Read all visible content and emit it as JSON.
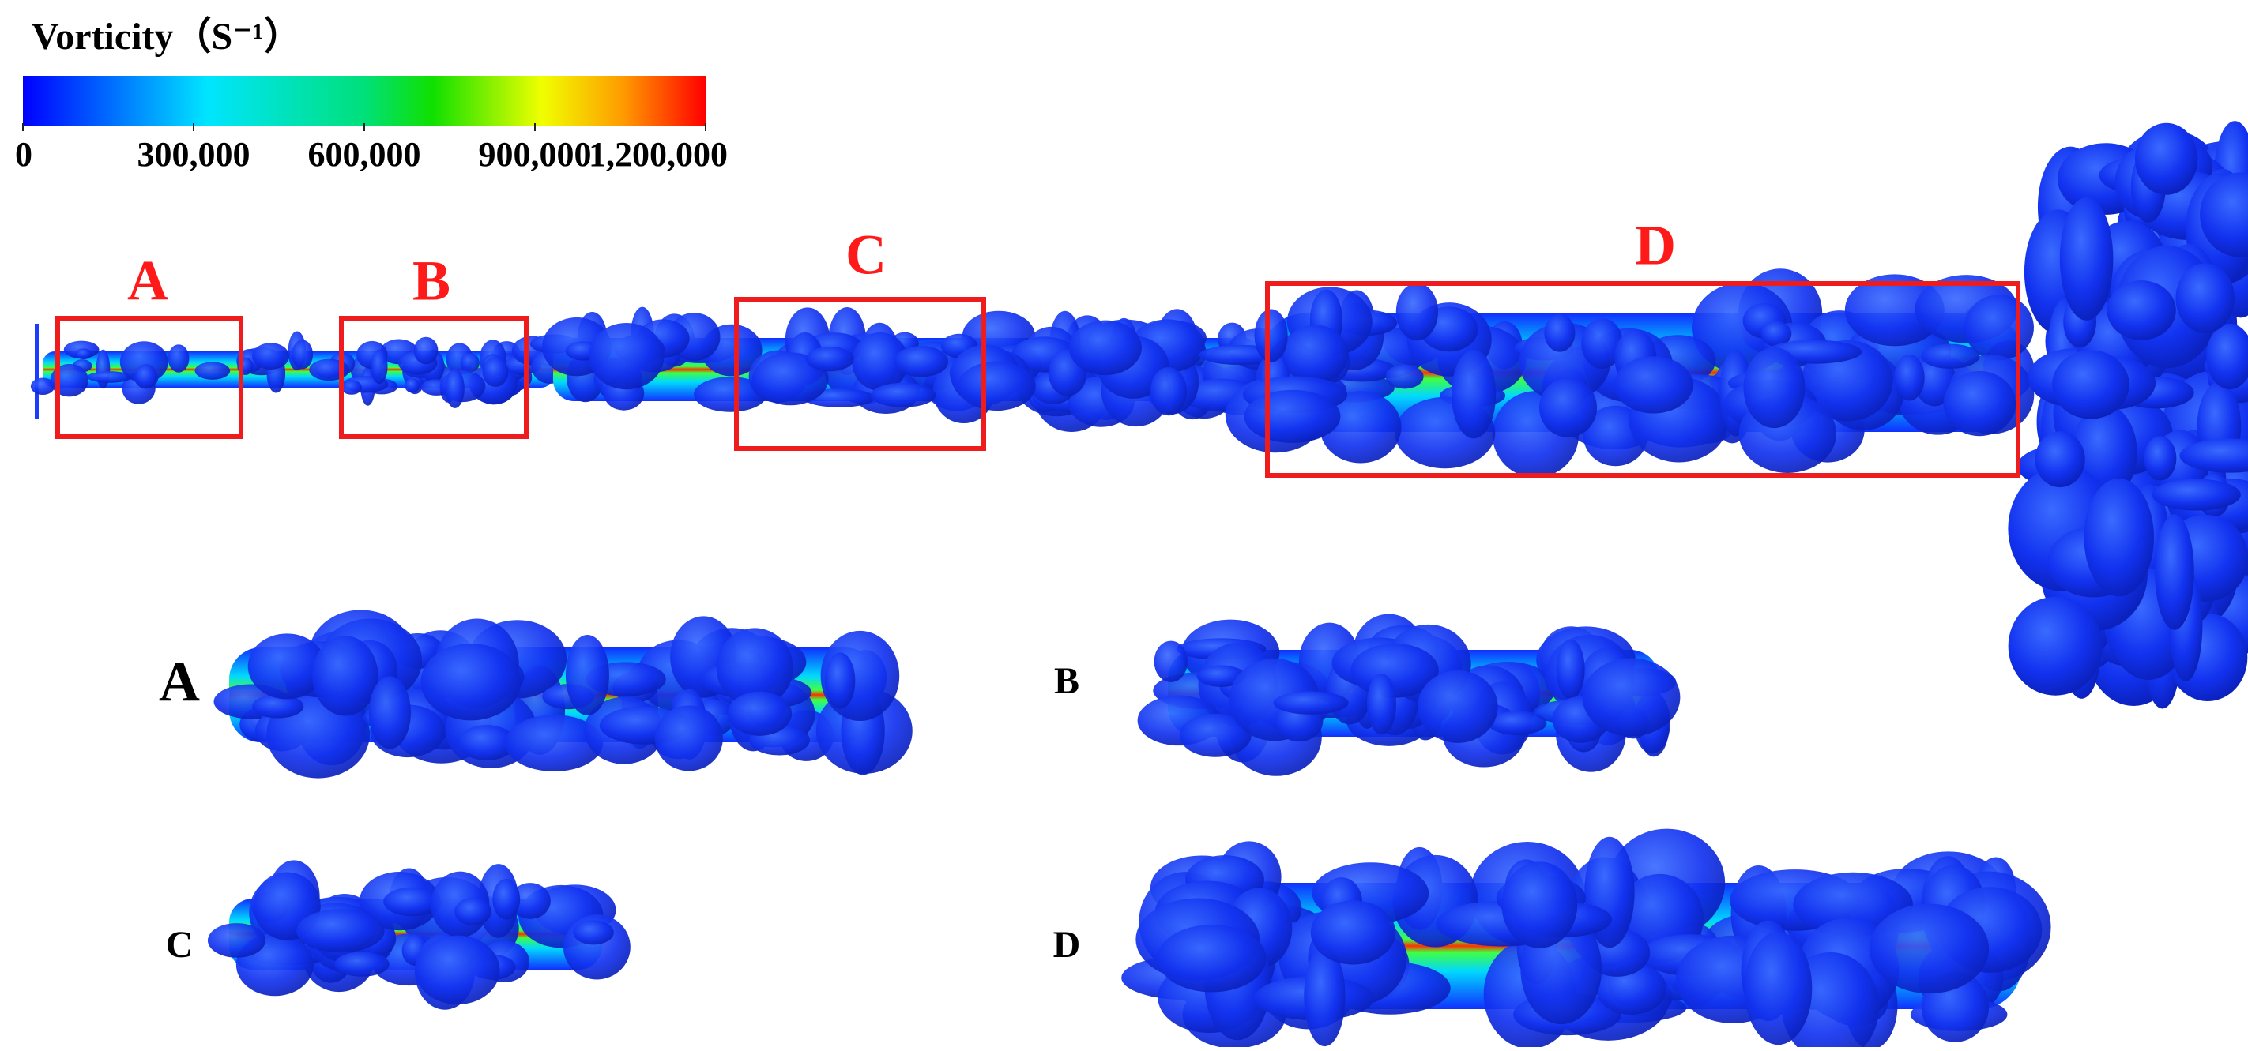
{
  "colorbar": {
    "title": "Vorticity（S⁻¹）",
    "lim": [
      0,
      1200000
    ],
    "ticks": [
      0,
      {
        "value": 300000,
        "label": "300,000"
      },
      {
        "value": 600000,
        "label": "600,000"
      },
      {
        "value": 900000,
        "label": "900,000"
      },
      {
        "value": 1200000,
        "label": "1,200,000"
      }
    ]
  },
  "regions": [
    "A",
    "B",
    "C",
    "D"
  ],
  "panels": [
    "A",
    "B",
    "C",
    "D"
  ]
}
